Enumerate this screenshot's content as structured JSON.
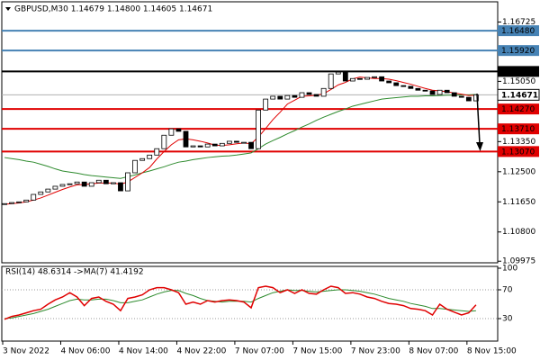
{
  "chart_data": [
    {
      "type": "candlestick",
      "title": "GBPUSD,M30 1.14679 1.14800 1.14605 1.14671",
      "categories": [
        "3 Nov 2022",
        null,
        null,
        null,
        null,
        null,
        null,
        null,
        "4 Nov 06:00",
        null,
        null,
        null,
        null,
        null,
        null,
        null,
        "4 Nov 14:00",
        null,
        null,
        null,
        null,
        null,
        null,
        null,
        "4 Nov 22:00",
        null,
        null,
        null,
        null,
        null,
        null,
        null,
        "7 Nov 07:00",
        null,
        null,
        null,
        null,
        null,
        null,
        null,
        "7 Nov 15:00",
        null,
        null,
        null,
        null,
        null,
        null,
        null,
        "7 Nov 23:00",
        null,
        null,
        null,
        null,
        null,
        null,
        null,
        "8 Nov 07:00",
        null,
        null,
        null,
        null,
        null,
        null,
        null,
        "8 Nov 15:00",
        null
      ],
      "close": [
        1.116,
        1.1163,
        1.1165,
        1.117,
        1.1186,
        1.1193,
        1.1201,
        1.1209,
        1.1214,
        1.1216,
        1.1221,
        1.1209,
        1.1219,
        1.1226,
        1.1216,
        1.1219,
        1.1196,
        1.1247,
        1.1282,
        1.1287,
        1.1297,
        1.1315,
        1.1353,
        1.1371,
        1.1364,
        1.132,
        1.1323,
        1.132,
        1.1328,
        1.1323,
        1.133,
        1.1336,
        1.1333,
        1.1333,
        1.1315,
        1.1424,
        1.1455,
        1.1463,
        1.1455,
        1.1465,
        1.146,
        1.1473,
        1.1468,
        1.1463,
        1.1485,
        1.1526,
        1.1531,
        1.1506,
        1.1513,
        1.1511,
        1.1516,
        1.1518,
        1.1506,
        1.1501,
        1.1493,
        1.1491,
        1.1485,
        1.148,
        1.1478,
        1.1468,
        1.148,
        1.1473,
        1.1463,
        1.146,
        1.145,
        1.14671
      ],
      "ma_fast": {
        "color": "#e00000",
        "values": [
          1.1158,
          1.116,
          1.1162,
          1.1165,
          1.117,
          1.1176,
          1.1184,
          1.1192,
          1.12,
          1.1207,
          1.1213,
          1.1214,
          1.1216,
          1.1218,
          1.1218,
          1.1218,
          1.1215,
          1.1221,
          1.1234,
          1.1247,
          1.1262,
          1.1286,
          1.1307,
          1.1326,
          1.134,
          1.1343,
          1.134,
          1.1336,
          1.1331,
          1.1325,
          1.1324,
          1.1326,
          1.1329,
          1.1331,
          1.1329,
          1.1348,
          1.1372,
          1.1397,
          1.1418,
          1.1441,
          1.1452,
          1.1463,
          1.1464,
          1.1466,
          1.147,
          1.1482,
          1.1495,
          1.1502,
          1.1512,
          1.1517,
          1.1515,
          1.1513,
          1.1513,
          1.1511,
          1.1507,
          1.1502,
          1.1497,
          1.1491,
          1.1485,
          1.148,
          1.1478,
          1.1476,
          1.1472,
          1.1469,
          1.1465,
          1.1466
        ]
      },
      "ma_slow": {
        "color": "#2e8b2e",
        "values": [
          1.129,
          1.1287,
          1.1284,
          1.128,
          1.1277,
          1.1271,
          1.1265,
          1.1258,
          1.1252,
          1.1249,
          1.1246,
          1.1242,
          1.1239,
          1.1237,
          1.1235,
          1.1233,
          1.1231,
          1.1236,
          1.1241,
          1.1247,
          1.1252,
          1.1258,
          1.1264,
          1.1271,
          1.1277,
          1.128,
          1.1284,
          1.1287,
          1.129,
          1.1292,
          1.1294,
          1.1295,
          1.1297,
          1.13,
          1.1303,
          1.1315,
          1.1328,
          1.1338,
          1.1347,
          1.1357,
          1.1366,
          1.1376,
          1.1385,
          1.1395,
          1.1404,
          1.1412,
          1.142,
          1.1427,
          1.1435,
          1.144,
          1.1445,
          1.145,
          1.1455,
          1.1457,
          1.1459,
          1.1461,
          1.1463,
          1.1463,
          1.1464,
          1.1464,
          1.1465,
          1.1466,
          1.1466,
          1.1467,
          1.1467,
          1.1468
        ]
      },
      "ylim": [
        1.0993,
        1.1727
      ],
      "yticks": [
        1.16725,
        {
          "value": 1.1505,
          "label": "1.15050"
        },
        {
          "value": 1.1335,
          "label": "1.13350"
        },
        {
          "value": 1.125,
          "label": "1.12500"
        },
        {
          "value": 1.1165,
          "label": "1.11650"
        },
        {
          "value": 1.108,
          "label": "1.10800"
        },
        1.09975
      ],
      "levels": [
        {
          "value": 1.1648,
          "label": "1.16480",
          "color": "#4682b4"
        },
        {
          "value": 1.1592,
          "label": "1.15920",
          "color": "#4682b4"
        },
        {
          "value": 1.1533,
          "label": "1.15330",
          "color": "#000000"
        },
        {
          "value": 1.1427,
          "label": "1.14270",
          "color": "#e00000"
        },
        {
          "value": 1.1371,
          "label": "1.13710",
          "color": "#e00000"
        },
        {
          "value": 1.1307,
          "label": "1.13070",
          "color": "#e00000"
        }
      ],
      "last_price": 1.14671
    },
    {
      "type": "line",
      "title": "RSI(14) 48.6314 ->MA(7) 41.4192",
      "values": [
        29,
        33,
        35,
        38,
        41,
        43,
        50,
        56,
        60,
        66,
        60,
        48,
        58,
        60,
        54,
        50,
        41,
        58,
        60,
        63,
        70,
        73,
        73,
        70,
        66,
        50,
        53,
        50,
        55,
        53,
        55,
        56,
        55,
        53,
        45,
        73,
        75,
        73,
        66,
        70,
        65,
        70,
        65,
        64,
        70,
        75,
        73,
        65,
        66,
        64,
        60,
        58,
        54,
        51,
        50,
        48,
        44,
        43,
        41,
        35,
        50,
        43,
        39,
        35,
        38,
        49
      ],
      "color": "#e00000",
      "ma": {
        "color": "#2e8b2e",
        "values": [
          30,
          31,
          33,
          35,
          37,
          40,
          43,
          47,
          51,
          55,
          57,
          56,
          56,
          57,
          57,
          55,
          52,
          52,
          54,
          56,
          60,
          64,
          67,
          69,
          69,
          65,
          62,
          58,
          55,
          54,
          53,
          54,
          54,
          54,
          53,
          58,
          62,
          66,
          68,
          70,
          69,
          69,
          68,
          67,
          68,
          69,
          70,
          70,
          69,
          68,
          66,
          64,
          61,
          58,
          56,
          54,
          51,
          49,
          47,
          44,
          44,
          43,
          42,
          41,
          40,
          41
        ]
      },
      "ylim": [
        0,
        100
      ],
      "yticks": [
        30,
        70,
        100
      ]
    }
  ]
}
